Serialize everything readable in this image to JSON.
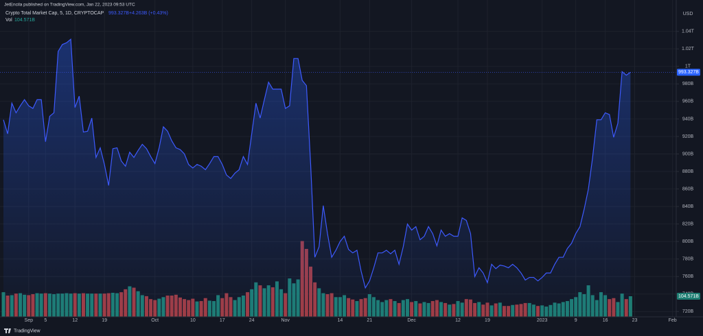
{
  "header": {
    "published": "JetEncila published on TradingView.com, Jan 22, 2023 09:53 UTC",
    "symbol": "Crypto Total Market Cap, 5, 1D, CRYPTOCAP",
    "last": "993.327B",
    "change": "+4.263B (+0.43%)",
    "volume_name": "Vol",
    "volume": "104.571B",
    "currency": "USD",
    "brand": "TradingView"
  },
  "chart_data": {
    "type": "area",
    "categories": [
      null,
      null,
      null,
      null,
      null,
      null,
      "Sep",
      null,
      null,
      null,
      "5",
      null,
      null,
      null,
      null,
      null,
      null,
      "12",
      null,
      null,
      null,
      null,
      null,
      null,
      "19",
      null,
      null,
      null,
      null,
      null,
      null,
      null,
      null,
      null,
      null,
      null,
      "Oct",
      null,
      null,
      null,
      null,
      null,
      null,
      null,
      null,
      "10",
      null,
      null,
      null,
      null,
      null,
      null,
      "17",
      null,
      null,
      null,
      null,
      null,
      null,
      "24",
      null,
      null,
      null,
      null,
      null,
      null,
      null,
      "Nov",
      null,
      null,
      null,
      null,
      null,
      null,
      null,
      null,
      null,
      null,
      null,
      null,
      "14",
      null,
      null,
      null,
      null,
      null,
      null,
      "21",
      null,
      null,
      null,
      null,
      null,
      null,
      null,
      null,
      null,
      "Dec",
      null,
      null,
      null,
      null,
      null,
      null,
      null,
      null,
      null,
      null,
      "12",
      null,
      null,
      null,
      null,
      null,
      null,
      "19",
      null,
      null,
      null,
      null,
      null,
      null,
      null,
      null,
      null,
      null,
      null,
      null,
      "2023",
      null,
      null,
      null,
      null,
      null,
      null,
      null,
      "9",
      null,
      null,
      null,
      null,
      null,
      null,
      "16",
      null,
      null,
      null,
      null,
      null,
      null,
      "23",
      null,
      null,
      null,
      null,
      null,
      null,
      null,
      null,
      "Feb"
    ],
    "series": [
      {
        "name": "Crypto Total Market Cap, 5, 1D, CRYPTOCAP",
        "color": "#3d5afe",
        "values": [
          939,
          923,
          958,
          947,
          955,
          962,
          955,
          952,
          962,
          962,
          914,
          943,
          947,
          1017,
          1025,
          1027,
          1031,
          953,
          966,
          925,
          926,
          941,
          896,
          907,
          888,
          864,
          906,
          907,
          892,
          886,
          902,
          896,
          904,
          911,
          906,
          897,
          889,
          907,
          931,
          926,
          915,
          907,
          905,
          900,
          888,
          884,
          888,
          886,
          882,
          889,
          897,
          897,
          888,
          876,
          872,
          878,
          882,
          897,
          888,
          923,
          958,
          941,
          962,
          982,
          974,
          974,
          974,
          952,
          955,
          1009,
          1009,
          984,
          978,
          888,
          782,
          794,
          841,
          809,
          782,
          790,
          800,
          806,
          791,
          787,
          790,
          766,
          747,
          755,
          770,
          787,
          787,
          790,
          786,
          790,
          774,
          794,
          820,
          813,
          817,
          802,
          806,
          817,
          809,
          795,
          813,
          806,
          809,
          806,
          806,
          827,
          824,
          809,
          760,
          770,
          764,
          753,
          774,
          769,
          773,
          772,
          770,
          774,
          770,
          764,
          756,
          759,
          759,
          755,
          759,
          764,
          764,
          774,
          782,
          782,
          792,
          798,
          809,
          817,
          837,
          860,
          896,
          939,
          939,
          947,
          945,
          919,
          935,
          994,
          990,
          993.327,
          null,
          null,
          null,
          null,
          null,
          null,
          null,
          null,
          null,
          null
        ]
      },
      {
        "name": "Vol",
        "color": "#1e7d72",
        "down_color": "#a13c42",
        "values": [
          125,
          108,
          110,
          118,
          120,
          112,
          110,
          115,
          120,
          118,
          120,
          118,
          115,
          118,
          118,
          120,
          118,
          120,
          118,
          120,
          118,
          118,
          118,
          118,
          118,
          120,
          122,
          120,
          125,
          140,
          155,
          148,
          130,
          110,
          105,
          90,
          85,
          92,
          100,
          108,
          108,
          112,
          98,
          90,
          85,
          92,
          78,
          80,
          95,
          82,
          80,
          110,
          95,
          120,
          100,
          85,
          100,
          108,
          125,
          140,
          175,
          160,
          145,
          160,
          150,
          180,
          140,
          120,
          195,
          170,
          190,
          385,
          345,
          255,
          175,
          145,
          120,
          115,
          120,
          100,
          100,
          110,
          95,
          88,
          80,
          90,
          95,
          115,
          100,
          85,
          75,
          85,
          90,
          80,
          70,
          85,
          90,
          75,
          80,
          68,
          75,
          70,
          80,
          85,
          75,
          70,
          62,
          65,
          80,
          72,
          90,
          88,
          70,
          75,
          62,
          72,
          58,
          68,
          72,
          55,
          55,
          60,
          62,
          65,
          70,
          70,
          62,
          55,
          58,
          52,
          60,
          72,
          68,
          75,
          80,
          90,
          100,
          125,
          115,
          160,
          110,
          85,
          125,
          110,
          90,
          95,
          75,
          118,
          90,
          104.571,
          null,
          null,
          null,
          null,
          null,
          null,
          null,
          null,
          null,
          null
        ]
      }
    ],
    "ylim": [
      714,
      1068
    ],
    "yticks": [
      {
        "value": 720,
        "label": "720B"
      },
      {
        "value": 740,
        "label": "740B"
      },
      {
        "value": 760,
        "label": "760B"
      },
      {
        "value": 780,
        "label": "780B"
      },
      {
        "value": 800,
        "label": "800B"
      },
      {
        "value": 820,
        "label": "820B"
      },
      {
        "value": 840,
        "label": "840B"
      },
      {
        "value": 860,
        "label": "860B"
      },
      {
        "value": 880,
        "label": "880B"
      },
      {
        "value": 900,
        "label": "900B"
      },
      {
        "value": 920,
        "label": "920B"
      },
      {
        "value": 940,
        "label": "940B"
      },
      {
        "value": 960,
        "label": "960B"
      },
      {
        "value": 980,
        "label": "980B"
      },
      {
        "value": 1000,
        "label": "1T"
      },
      {
        "value": 1020,
        "label": "1.02T"
      },
      {
        "value": 1040,
        "label": "1.04T"
      }
    ],
    "grid": true
  }
}
